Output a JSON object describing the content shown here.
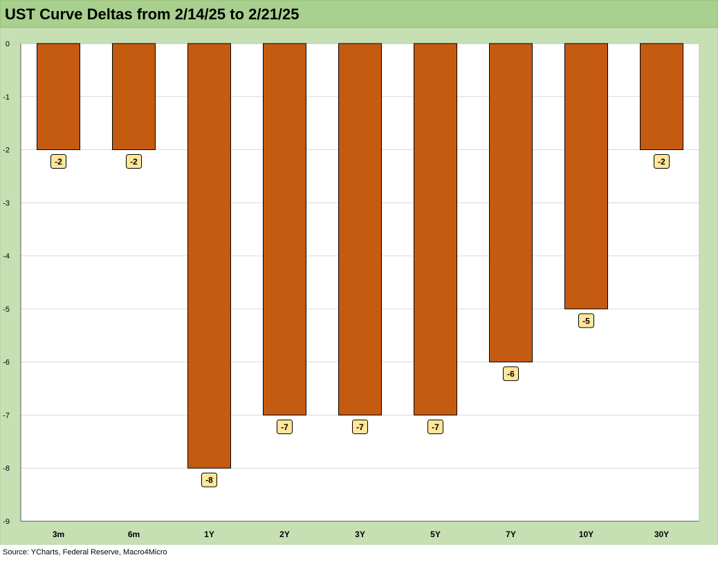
{
  "title": "UST Curve Deltas from 2/14/25 to 2/21/25",
  "source": "Source: YCharts, Federal Reserve, Macro4Micro",
  "colors": {
    "bar": "#c55a11",
    "bar_outline": "#000000",
    "label_fill": "#ffe699",
    "frame": "#c6e0b4",
    "title_bar": "#a9d08e"
  },
  "chart_data": {
    "type": "bar",
    "title": "UST Curve Deltas from 2/14/25 to 2/21/25",
    "xlabel": "",
    "ylabel": "",
    "categories": [
      "3m",
      "6m",
      "1Y",
      "2Y",
      "3Y",
      "5Y",
      "7Y",
      "10Y",
      "30Y"
    ],
    "values": [
      -2,
      -2,
      -8,
      -7,
      -7,
      -7,
      -6,
      -5,
      -2
    ],
    "ylim": [
      -9,
      0
    ],
    "yticks": [
      0,
      -1,
      -2,
      -3,
      -4,
      -5,
      -6,
      -7,
      -8,
      -9
    ],
    "grid": true,
    "legend": "none"
  }
}
